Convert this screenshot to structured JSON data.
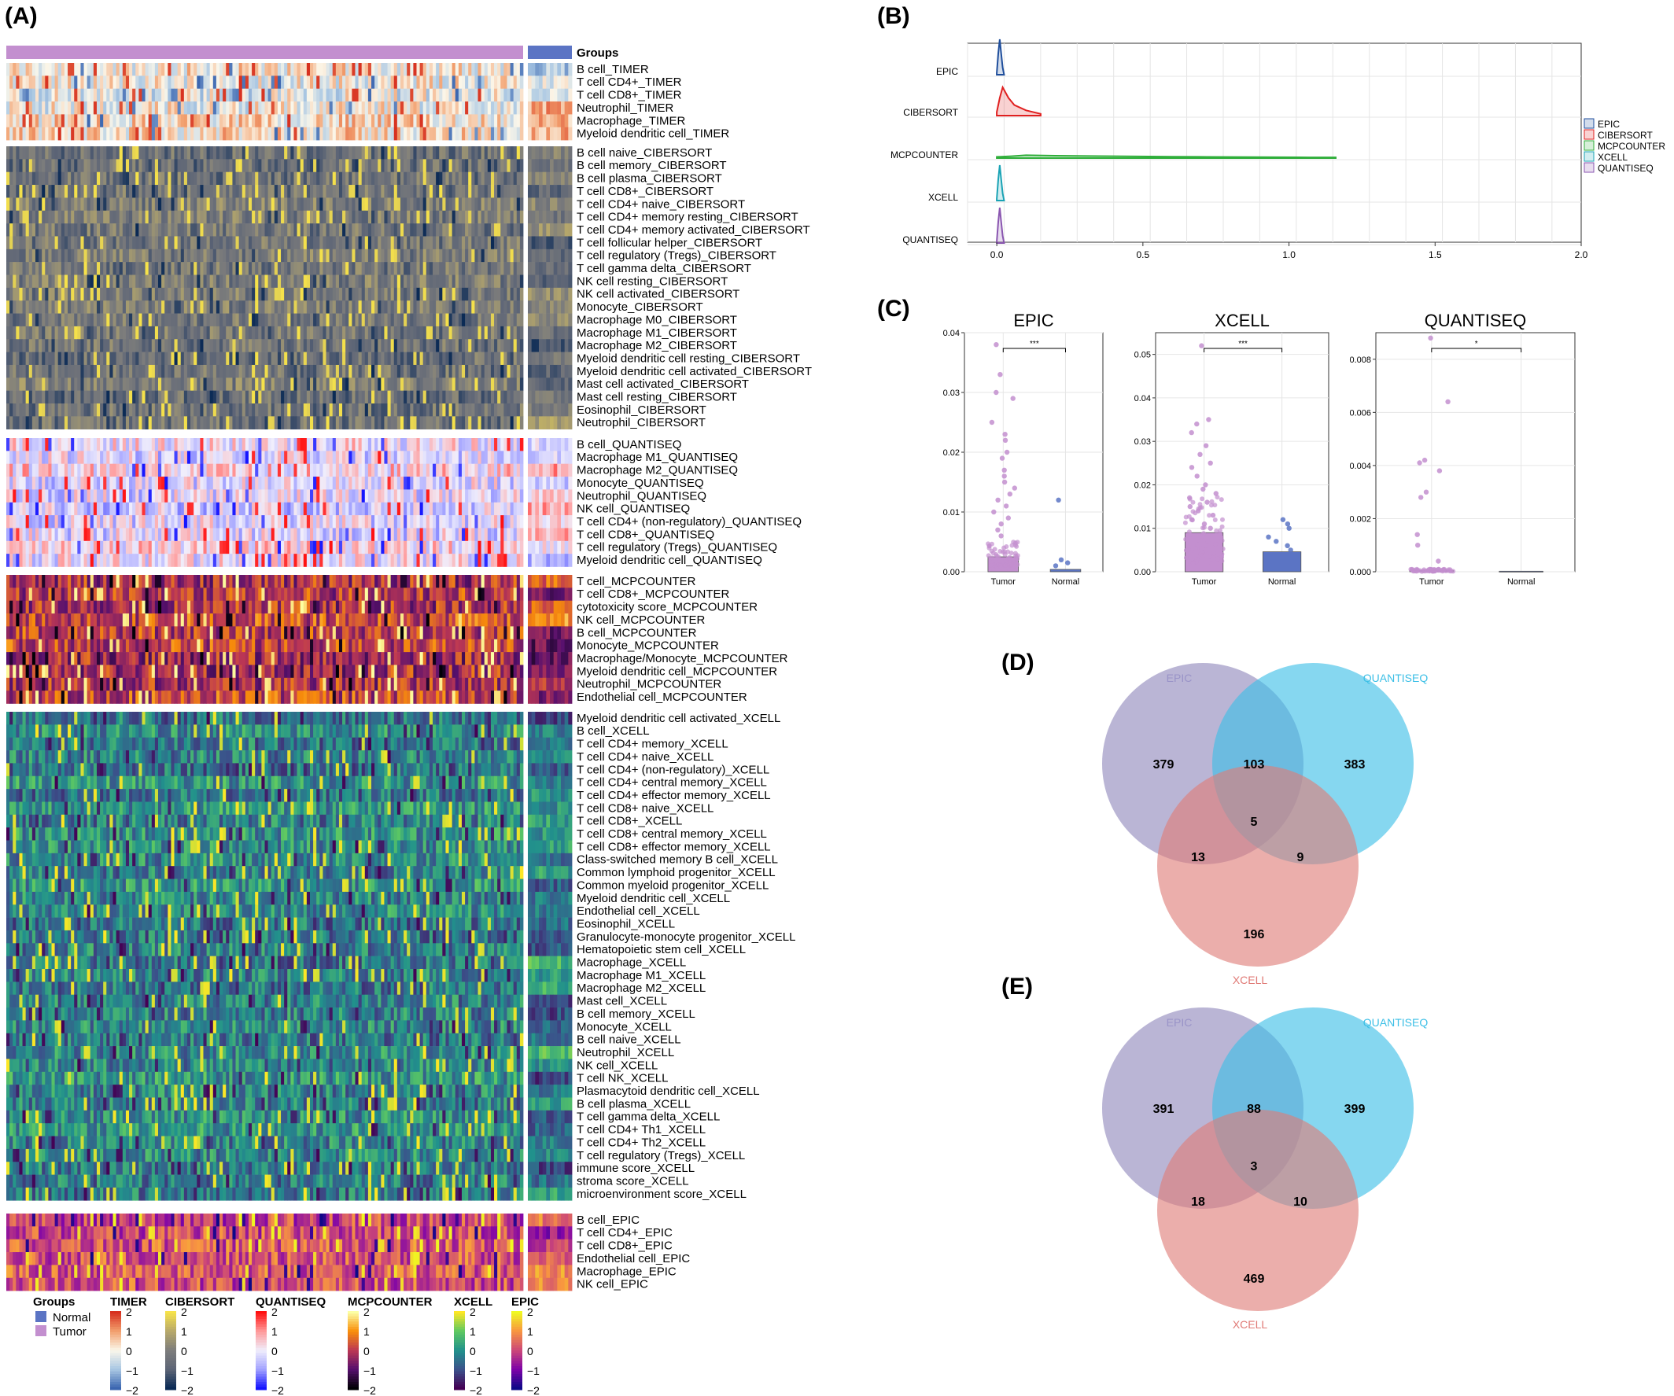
{
  "panel_labels": {
    "a": "(A)",
    "b": "(B)",
    "c": "(C)",
    "d": "(D)",
    "e": "(E)"
  },
  "colors": {
    "normal": "#5b74c4",
    "tumor": "#c38fcf",
    "epic_line": "#1f4e9c",
    "cibersort_line": "#e02020",
    "mcpcounter_line": "#2fae3a",
    "xcell_line": "#1aa3b5",
    "quantiseq_line": "#8a56b0",
    "venn_epic": "#8f88bb",
    "venn_quantiseq": "#3cbfe6",
    "venn_xcell": "#de7c78"
  },
  "chart_data": [
    {
      "type": "heatmap",
      "panel": "(A)",
      "annotation_label": "Groups",
      "groups_legend": {
        "title": "Groups",
        "items": [
          "Normal",
          "Tumor"
        ]
      },
      "blocks": [
        {
          "name": "TIMER",
          "palette": "rdbu",
          "rows": [
            "B cell_TIMER",
            "T cell CD4+_TIMER",
            "T cell CD8+_TIMER",
            "Neutrophil_TIMER",
            "Macrophage_TIMER",
            "Myeloid dendritic cell_TIMER"
          ]
        },
        {
          "name": "CIBERSORT",
          "palette": "cividis",
          "rows": [
            "B cell naive_CIBERSORT",
            "B cell memory_CIBERSORT",
            "B cell plasma_CIBERSORT",
            "T cell CD8+_CIBERSORT",
            "T cell CD4+ naive_CIBERSORT",
            "T cell CD4+ memory resting_CIBERSORT",
            "T cell CD4+ memory activated_CIBERSORT",
            "T cell follicular helper_CIBERSORT",
            "T cell regulatory (Tregs)_CIBERSORT",
            "T cell gamma delta_CIBERSORT",
            "NK cell resting_CIBERSORT",
            "NK cell activated_CIBERSORT",
            "Monocyte_CIBERSORT",
            "Macrophage M0_CIBERSORT",
            "Macrophage M1_CIBERSORT",
            "Macrophage M2_CIBERSORT",
            "Myeloid dendritic cell resting_CIBERSORT",
            "Myeloid dendritic cell activated_CIBERSORT",
            "Mast cell activated_CIBERSORT",
            "Mast cell resting_CIBERSORT",
            "Eosinophil_CIBERSORT",
            "Neutrophil_CIBERSORT"
          ]
        },
        {
          "name": "QUANTISEQ",
          "palette": "bwr",
          "rows": [
            "B cell_QUANTISEQ",
            "Macrophage M1_QUANTISEQ",
            "Macrophage M2_QUANTISEQ",
            "Monocyte_QUANTISEQ",
            "Neutrophil_QUANTISEQ",
            "NK cell_QUANTISEQ",
            "T cell CD4+ (non-regulatory)_QUANTISEQ",
            "T cell CD8+_QUANTISEQ",
            "T cell regulatory (Tregs)_QUANTISEQ",
            "Myeloid dendritic cell_QUANTISEQ"
          ]
        },
        {
          "name": "MCPCOUNTER",
          "palette": "inferno",
          "rows": [
            "T cell_MCPCOUNTER",
            "T cell CD8+_MCPCOUNTER",
            "cytotoxicity score_MCPCOUNTER",
            "NK cell_MCPCOUNTER",
            "B cell_MCPCOUNTER",
            "Monocyte_MCPCOUNTER",
            "Macrophage/Monocyte_MCPCOUNTER",
            "Myeloid dendritic cell_MCPCOUNTER",
            "Neutrophil_MCPCOUNTER",
            "Endothelial cell_MCPCOUNTER"
          ]
        },
        {
          "name": "XCELL",
          "palette": "viridis",
          "rows": [
            "Myeloid dendritic cell activated_XCELL",
            "B cell_XCELL",
            "T cell CD4+ memory_XCELL",
            "T cell CD4+ naive_XCELL",
            "T cell CD4+ (non-regulatory)_XCELL",
            "T cell CD4+ central memory_XCELL",
            "T cell CD4+ effector memory_XCELL",
            "T cell CD8+ naive_XCELL",
            "T cell CD8+_XCELL",
            "T cell CD8+ central memory_XCELL",
            "T cell CD8+ effector memory_XCELL",
            "Class-switched memory B cell_XCELL",
            "Common lymphoid progenitor_XCELL",
            "Common myeloid progenitor_XCELL",
            "Myeloid dendritic cell_XCELL",
            "Endothelial cell_XCELL",
            "Eosinophil_XCELL",
            "Granulocyte-monocyte progenitor_XCELL",
            "Hematopoietic stem cell_XCELL",
            "Macrophage_XCELL",
            "Macrophage M1_XCELL",
            "Macrophage M2_XCELL",
            "Mast cell_XCELL",
            "B cell memory_XCELL",
            "Monocyte_XCELL",
            "B cell naive_XCELL",
            "Neutrophil_XCELL",
            "NK cell_XCELL",
            "T cell NK_XCELL",
            "Plasmacytoid dendritic cell_XCELL",
            "B cell plasma_XCELL",
            "T cell gamma delta_XCELL",
            "T cell CD4+ Th1_XCELL",
            "T cell CD4+ Th2_XCELL",
            "T cell regulatory (Tregs)_XCELL",
            "immune score_XCELL",
            "stroma score_XCELL",
            "microenvironment score_XCELL"
          ]
        },
        {
          "name": "EPIC",
          "palette": "plasma",
          "rows": [
            "B cell_EPIC",
            "T cell CD4+_EPIC",
            "T cell CD8+_EPIC",
            "Endothelial cell_EPIC",
            "Macrophage_EPIC",
            "NK cell_EPIC"
          ]
        }
      ],
      "legend_ticks": [
        "2",
        "1",
        "0",
        "−1",
        "−2"
      ]
    },
    {
      "type": "area",
      "panel": "(B)",
      "subtype": "ridgeline density",
      "series": [
        {
          "name": "EPIC",
          "x": [
            0.0,
            0.005,
            0.01,
            0.015,
            0.02,
            0.025
          ],
          "y": [
            0.05,
            0.6,
            1.0,
            0.6,
            0.2,
            0.0
          ]
        },
        {
          "name": "CIBERSORT",
          "x": [
            0.0,
            0.01,
            0.02,
            0.04,
            0.06,
            0.1,
            0.15
          ],
          "y": [
            0.1,
            0.5,
            0.8,
            0.5,
            0.3,
            0.15,
            0.05
          ]
        },
        {
          "name": "MCPCOUNTER",
          "x": [
            0.0,
            0.05,
            0.1,
            0.2,
            0.4,
            0.6,
            0.72,
            0.88,
            1.07,
            1.16
          ],
          "y": [
            0.05,
            0.08,
            0.12,
            0.1,
            0.08,
            0.06,
            0.05,
            0.04,
            0.03,
            0.03
          ]
        },
        {
          "name": "XCELL",
          "x": [
            0.0,
            0.005,
            0.01,
            0.015,
            0.02,
            0.025
          ],
          "y": [
            0.05,
            0.6,
            1.0,
            0.6,
            0.2,
            0.0
          ]
        },
        {
          "name": "QUANTISEQ",
          "x": [
            0.0,
            0.005,
            0.01,
            0.015,
            0.02,
            0.025
          ],
          "y": [
            0.05,
            0.6,
            1.0,
            0.6,
            0.2,
            0.0
          ]
        }
      ],
      "categories": [
        "EPIC",
        "CIBERSORT",
        "MCPCOUNTER",
        "XCELL",
        "QUANTISEQ"
      ],
      "xlim": [
        -0.1,
        2.0
      ],
      "xticks": [
        "0.0",
        "0.5",
        "1.0",
        "1.5",
        "2.0"
      ],
      "legend": [
        "EPIC",
        "CIBERSORT",
        "MCPCOUNTER",
        "XCELL",
        "QUANTISEQ"
      ],
      "legend_position": "right",
      "grid": true
    },
    {
      "type": "bar",
      "panel": "(C)",
      "subplots": [
        {
          "title": "EPIC",
          "categories": [
            "Tumor",
            "Normal"
          ],
          "values": [
            0.0025,
            0.0004
          ],
          "ylim": [
            0,
            0.04
          ],
          "yticks": [
            "0.00",
            "0.01",
            "0.02",
            "0.03",
            "0.04"
          ],
          "significance": "***",
          "outliers_tumor": [
            0.038,
            0.033,
            0.03,
            0.029,
            0.025,
            0.023,
            0.022,
            0.02,
            0.019,
            0.017,
            0.016,
            0.015,
            0.014,
            0.013,
            0.012,
            0.011,
            0.01,
            0.009,
            0.008,
            0.007,
            0.006
          ],
          "outliers_normal": [
            0.012,
            0.002,
            0.0015,
            0.001
          ]
        },
        {
          "title": "XCELL",
          "categories": [
            "Tumor",
            "Normal"
          ],
          "values": [
            0.009,
            0.0046
          ],
          "ylim": [
            0,
            0.055
          ],
          "yticks": [
            "0.00",
            "0.01",
            "0.02",
            "0.03",
            "0.04",
            "0.05"
          ],
          "significance": "***",
          "outliers_tumor": [
            0.052,
            0.035,
            0.034,
            0.032,
            0.029,
            0.027,
            0.025,
            0.024,
            0.022,
            0.02,
            0.019,
            0.018,
            0.017,
            0.016,
            0.015,
            0.014,
            0.013,
            0.012,
            0.011,
            0.01
          ],
          "outliers_normal": [
            0.012,
            0.011,
            0.01,
            0.008,
            0.007,
            0.006,
            0.005
          ]
        },
        {
          "title": "QUANTISEQ",
          "categories": [
            "Tumor",
            "Normal"
          ],
          "values": [
            5e-05,
            2e-05
          ],
          "ylim": [
            0,
            0.009
          ],
          "yticks": [
            "0.000",
            "0.002",
            "0.004",
            "0.006",
            "0.008"
          ],
          "significance": "*",
          "outliers_tumor": [
            0.0088,
            0.0064,
            0.0042,
            0.0041,
            0.0038,
            0.003,
            0.0028,
            0.0014,
            0.001,
            0.0004
          ],
          "outliers_normal": []
        }
      ]
    },
    {
      "type": "venn",
      "panel": "(D)",
      "sets": [
        "EPIC",
        "QUANTISEQ",
        "XCELL"
      ],
      "regions": {
        "EPIC_only": "379",
        "QUANTISEQ_only": "383",
        "XCELL_only": "196",
        "EPIC_QUANTISEQ": "103",
        "EPIC_XCELL": "13",
        "QUANTISEQ_XCELL": "9",
        "all": "5"
      }
    },
    {
      "type": "venn",
      "panel": "(E)",
      "sets": [
        "EPIC",
        "QUANTISEQ",
        "XCELL"
      ],
      "regions": {
        "EPIC_only": "391",
        "QUANTISEQ_only": "399",
        "XCELL_only": "469",
        "EPIC_QUANTISEQ": "88",
        "EPIC_XCELL": "18",
        "QUANTISEQ_XCELL": "10",
        "all": "3"
      }
    }
  ]
}
